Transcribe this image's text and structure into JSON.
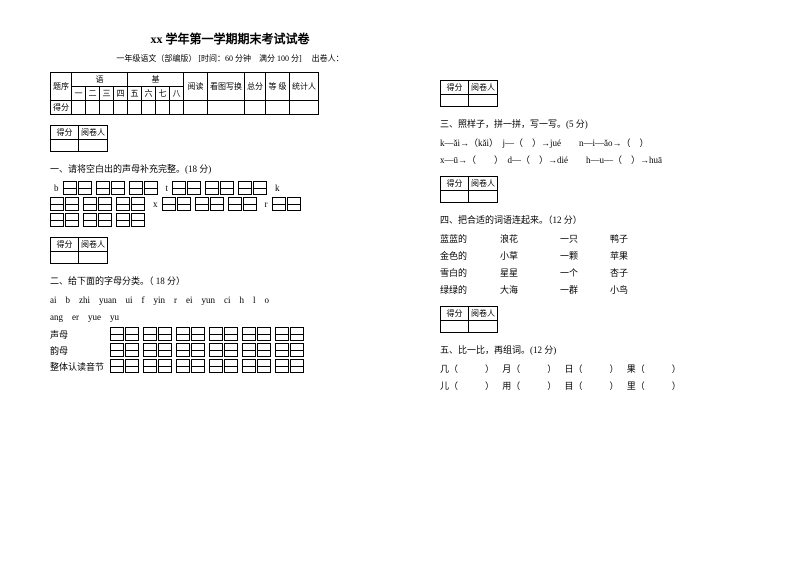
{
  "title": "xx 学年第一学期期末考试试卷",
  "subtitle_subject": "一年级语文（部编版）",
  "subtitle_time": "[时间：60 分钟　满分 100 分]",
  "subtitle_teacher": "出卷人：",
  "score_table": {
    "row1_label": "题序",
    "row2_label": "得分",
    "groups": [
      "语",
      "基"
    ],
    "cols_nums": [
      "一",
      "二",
      "三",
      "四",
      "五",
      "六",
      "七",
      "八"
    ],
    "reading": "阅读",
    "picture": "看图写换",
    "total": "总分",
    "grade": "等 级",
    "stat": "统计人"
  },
  "small_table": {
    "c1": "得分",
    "c2": "阅卷人"
  },
  "q1": {
    "title": "一、请将空白出的声母补充完整。(18 分)",
    "letters": [
      "b",
      "t",
      "k",
      "x",
      "r"
    ]
  },
  "q2": {
    "title": "二、给下面的字母分类。（ 18 分）",
    "letters_line1": "ai　b　zhi　yuan　ui　f　yin　r　ei　yun　ci　h　l　o",
    "letters_line2": "ang　er　yue　yu",
    "row_labels": [
      "声母",
      "韵母",
      "整体认读音节"
    ]
  },
  "q3": {
    "title": "三、照样子，拼一拼，写一写。(5 分)",
    "line1": "k—ǎi→（kǎi）　j—（　）→jué　　n—i—ǎo→（　）",
    "line2": "x—ū→（　　）　d—（　）→dié　　h—u—（　）→huā"
  },
  "q4": {
    "title": "四、把合适的词语连起来。（12 分）",
    "rows": [
      [
        "蓝蓝的",
        "浪花",
        "一只",
        "鸭子"
      ],
      [
        "金色的",
        "小草",
        "一颗",
        "苹果"
      ],
      [
        "雪白的",
        "星星",
        "一个",
        "杏子"
      ],
      [
        "绿绿的",
        "大海",
        "一群",
        "小鸟"
      ]
    ]
  },
  "q5": {
    "title": "五、比一比，再组词。(12 分)",
    "line1": [
      "几（　　　）",
      "月（　　　）",
      "日（　　　）",
      "果（　　　）"
    ],
    "line2": [
      "儿（　　　）",
      "用（　　　）",
      "目（　　　）",
      "里（　　　）"
    ]
  }
}
